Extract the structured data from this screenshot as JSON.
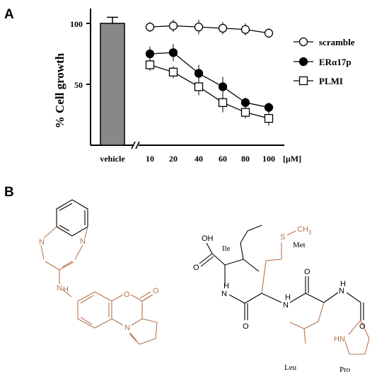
{
  "panel_a_label": "A",
  "panel_b_label": "B",
  "chart_data": {
    "type": "line",
    "ylabel": "% Cell growth",
    "xunit": "[μM]",
    "ylim": [
      0,
      115
    ],
    "yticks": [
      50,
      100
    ],
    "bar": {
      "category": "vehicle",
      "value": 100,
      "error": 5,
      "color": "#888888"
    },
    "x": [
      10,
      20,
      40,
      60,
      80,
      100
    ],
    "series": [
      {
        "name": "scramble",
        "marker": "open-circle",
        "values": [
          97,
          98,
          97,
          96,
          95,
          92
        ],
        "errors": [
          4,
          5,
          6,
          5,
          5,
          4
        ]
      },
      {
        "name": "ERα17p",
        "marker": "filled-circle",
        "values": [
          75,
          76,
          59,
          48,
          35,
          31
        ],
        "errors": [
          6,
          7,
          7,
          8,
          4,
          4
        ]
      },
      {
        "name": "PLMI",
        "marker": "open-square",
        "values": [
          66,
          60,
          48,
          35,
          27,
          22
        ],
        "errors": [
          5,
          5,
          7,
          8,
          5,
          6
        ]
      }
    ],
    "grid": false,
    "legend_position": "right"
  },
  "structure_a": {
    "atoms": {
      "n_top": "N",
      "n_bottom": "N",
      "nh": "H",
      "nh_n": "N",
      "o_ring": "O",
      "o_carbonyl": "O",
      "n_ring": "N"
    },
    "color": "#b5734f"
  },
  "structure_b": {
    "atoms": {
      "oh": "OH",
      "o_acid": "O",
      "s": "S",
      "ch3": "CH",
      "ch3_sub": "3",
      "nh1": "H",
      "nh1_n": "N",
      "o1": "O",
      "nh2": "H",
      "nh2_n": "N",
      "o2": "O",
      "nh3": "H",
      "nh3_n": "N",
      "o3": "O",
      "hn": "HN"
    },
    "residues": {
      "ile": "Ile",
      "met": "Met",
      "leu": "Leu",
      "pro": "Pro"
    },
    "color": "#b5734f"
  }
}
